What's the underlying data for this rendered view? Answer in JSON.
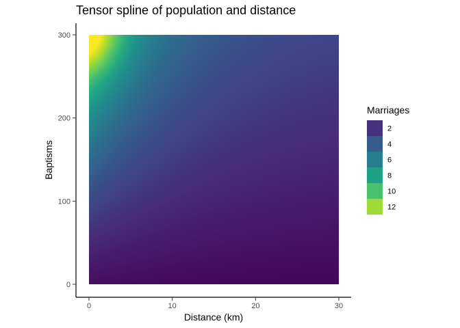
{
  "chart_data": {
    "type": "heatmap",
    "title": "Tensor spline of population and distance",
    "xlabel": "Distance (km)",
    "ylabel": "Baptisms",
    "xlim": [
      0,
      30
    ],
    "ylim": [
      0,
      300
    ],
    "x_ticks": [
      0,
      10,
      20,
      30
    ],
    "y_ticks": [
      0,
      100,
      200,
      300
    ],
    "grid": false,
    "colormap": "viridis",
    "legend": {
      "title": "Marriages",
      "placement": "right",
      "entries": [
        {
          "label": "2",
          "color": "#46337e"
        },
        {
          "label": "4",
          "color": "#365c8d"
        },
        {
          "label": "6",
          "color": "#277f8e"
        },
        {
          "label": "8",
          "color": "#1fa187"
        },
        {
          "label": "10",
          "color": "#4ac16d"
        },
        {
          "label": "12",
          "color": "#a0da39"
        }
      ]
    },
    "surface_samples": [
      {
        "x": 0,
        "y": 300,
        "z": 12.5
      },
      {
        "x": 2,
        "y": 280,
        "z": 11.5
      },
      {
        "x": 5,
        "y": 300,
        "z": 8.5
      },
      {
        "x": 0,
        "y": 200,
        "z": 8
      },
      {
        "x": 0,
        "y": 100,
        "z": 5.5
      },
      {
        "x": 0,
        "y": 0,
        "z": 2.5
      },
      {
        "x": 10,
        "y": 300,
        "z": 5.5
      },
      {
        "x": 10,
        "y": 150,
        "z": 4
      },
      {
        "x": 10,
        "y": 0,
        "z": 1.5
      },
      {
        "x": 20,
        "y": 300,
        "z": 4
      },
      {
        "x": 20,
        "y": 100,
        "z": 2
      },
      {
        "x": 30,
        "y": 300,
        "z": 2.5
      },
      {
        "x": 30,
        "y": 0,
        "z": 0.5
      }
    ]
  }
}
